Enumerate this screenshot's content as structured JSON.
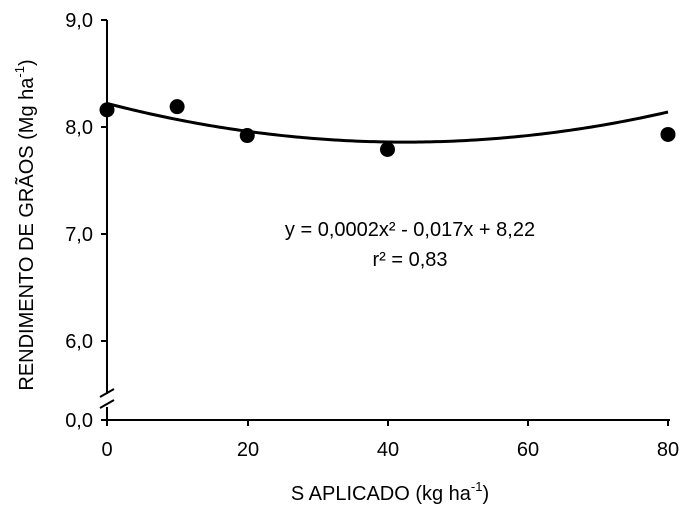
{
  "chart_data": {
    "type": "scatter",
    "xlabel": "S APLICADO (kg ha",
    "xlabel_sup": "-1",
    "xlabel_end": ")",
    "ylabel": "RENDIMENTO DE GRÃOS (Mg ha",
    "ylabel_sup": "-1",
    "ylabel_end": ")",
    "x_ticks": [
      "0",
      "20",
      "40",
      "60",
      "80"
    ],
    "y_ticks": [
      "0,0",
      "6,0",
      "7,0",
      "8,0",
      "9,0"
    ],
    "y_axis_break": true,
    "xlim": [
      0,
      80
    ],
    "ylim_upper_segment": [
      6.0,
      9.0
    ],
    "grid": false,
    "series": [
      {
        "points": [
          {
            "x": 0,
            "y": 8.16
          },
          {
            "x": 10,
            "y": 8.19
          },
          {
            "x": 20,
            "y": 7.92
          },
          {
            "x": 40,
            "y": 7.79
          },
          {
            "x": 80,
            "y": 7.93
          }
        ],
        "marker_color": "#000000"
      }
    ],
    "trendline": {
      "type": "quadratic",
      "coefficients": {
        "a": 0.0002,
        "b": -0.017,
        "c": 8.22
      },
      "x_range": [
        0,
        80
      ],
      "color": "#000000"
    },
    "annotations": {
      "equation": "y =  0,0002x² - 0,017x + 8,22",
      "r_squared": "r² = 0,83"
    }
  }
}
